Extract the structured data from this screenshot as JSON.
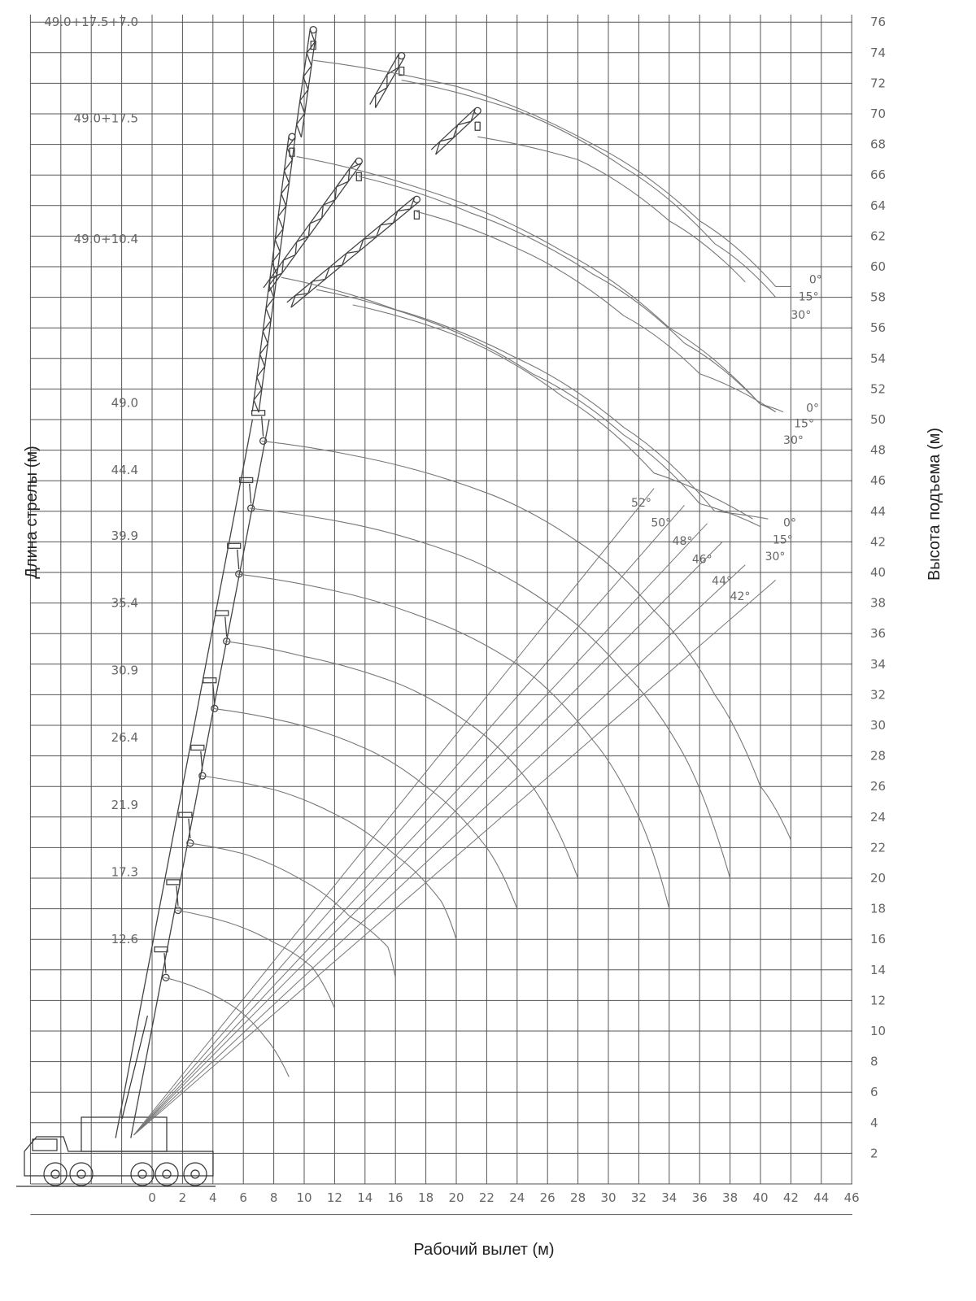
{
  "chart_data": {
    "type": "line",
    "title": "",
    "xlabel": "Рабочий вылет (м)",
    "ylabel_left": "Длина стрелы (м)",
    "ylabel_right": "Высота подъема (м)",
    "xlim": [
      -8,
      46
    ],
    "ylim": [
      -2,
      76
    ],
    "x_ticks": [
      "0",
      "2",
      "4",
      "6",
      "8",
      "10",
      "12",
      "14",
      "16",
      "18",
      "20",
      "22",
      "24",
      "26",
      "28",
      "30",
      "32",
      "34",
      "36",
      "38",
      "40",
      "42",
      "44",
      "46"
    ],
    "y_ticks": [
      "2",
      "4",
      "6",
      "8",
      "10",
      "12",
      "14",
      "16",
      "18",
      "20",
      "22",
      "24",
      "26",
      "28",
      "30",
      "32",
      "34",
      "36",
      "38",
      "40",
      "42",
      "44",
      "46",
      "48",
      "50",
      "52",
      "54",
      "56",
      "58",
      "60",
      "62",
      "64",
      "66",
      "68",
      "70",
      "72",
      "74",
      "76"
    ],
    "boom_length_labels": [
      "12.6",
      "17.3",
      "21.9",
      "26.4",
      "30.9",
      "35.4",
      "39.9",
      "44.4",
      "49.0",
      "49.0+10.4",
      "49.0+17.5",
      "49.0+17.5+7.0"
    ],
    "boom_envelopes": [
      {
        "name": "12.6",
        "points": [
          [
            0.8,
            13.5
          ],
          [
            3,
            12.8
          ],
          [
            5.5,
            11.5
          ],
          [
            7.5,
            9.5
          ],
          [
            9,
            7
          ]
        ]
      },
      {
        "name": "17.3",
        "points": [
          [
            1.6,
            17.9
          ],
          [
            5,
            17.1
          ],
          [
            8,
            15.8
          ],
          [
            10.5,
            14.2
          ],
          [
            12,
            11.5
          ]
        ]
      },
      {
        "name": "21.9",
        "points": [
          [
            2.4,
            22.3
          ],
          [
            6,
            21.6
          ],
          [
            10,
            19.8
          ],
          [
            13,
            17.5
          ],
          [
            15.5,
            15.5
          ],
          [
            16,
            13.5
          ]
        ]
      },
      {
        "name": "26.4",
        "points": [
          [
            3.2,
            26.7
          ],
          [
            8,
            25.8
          ],
          [
            12,
            24.2
          ],
          [
            16,
            21.5
          ],
          [
            19,
            18.5
          ],
          [
            20,
            16
          ]
        ]
      },
      {
        "name": "30.9",
        "points": [
          [
            4,
            31.1
          ],
          [
            9,
            30.2
          ],
          [
            14,
            28.5
          ],
          [
            18,
            26
          ],
          [
            22,
            22
          ],
          [
            24,
            18
          ]
        ]
      },
      {
        "name": "35.4",
        "points": [
          [
            4.8,
            35.5
          ],
          [
            10,
            34.5
          ],
          [
            16,
            32.8
          ],
          [
            21,
            30
          ],
          [
            25,
            26
          ],
          [
            28,
            20
          ]
        ]
      },
      {
        "name": "39.9",
        "points": [
          [
            5.6,
            39.9
          ],
          [
            12,
            38.8
          ],
          [
            18,
            37
          ],
          [
            24,
            34
          ],
          [
            29,
            29
          ],
          [
            32,
            24
          ],
          [
            34,
            18
          ]
        ]
      },
      {
        "name": "44.4",
        "points": [
          [
            6.4,
            44.2
          ],
          [
            13,
            43.2
          ],
          [
            20,
            41.2
          ],
          [
            26,
            38
          ],
          [
            31,
            33.5
          ],
          [
            35,
            28
          ],
          [
            38,
            20
          ]
        ]
      },
      {
        "name": "49.0",
        "points": [
          [
            7.2,
            48.6
          ],
          [
            14,
            47.5
          ],
          [
            22,
            45.2
          ],
          [
            28,
            42
          ],
          [
            33,
            37.5
          ],
          [
            37,
            32
          ],
          [
            40,
            26
          ],
          [
            42,
            22.5
          ]
        ]
      }
    ],
    "jib_envelopes": [
      {
        "name": "49.0+10.4 / 0°",
        "points": [
          [
            8.5,
            59.3
          ],
          [
            16,
            57.2
          ],
          [
            24,
            54
          ],
          [
            31,
            49.5
          ],
          [
            37,
            44
          ],
          [
            40.5,
            43.5
          ]
        ]
      },
      {
        "name": "49.0+10.4 / 15°",
        "points": [
          [
            10.8,
            58.5
          ],
          [
            18,
            56.5
          ],
          [
            25,
            53
          ],
          [
            31,
            49
          ],
          [
            36,
            44.5
          ],
          [
            40,
            43
          ]
        ]
      },
      {
        "name": "49.0+10.4 / 30°",
        "points": [
          [
            13.2,
            57.5
          ],
          [
            20,
            55.5
          ],
          [
            27,
            51.5
          ],
          [
            33,
            46.5
          ],
          [
            39.5,
            43.5
          ]
        ]
      },
      {
        "name": "49.0+17.5 / 0°",
        "points": [
          [
            9.5,
            67.2
          ],
          [
            18,
            65
          ],
          [
            27,
            61
          ],
          [
            34,
            56
          ],
          [
            40,
            51
          ],
          [
            41.5,
            50.5
          ]
        ]
      },
      {
        "name": "49.0+17.5 / 15°",
        "points": [
          [
            13.6,
            65.9
          ],
          [
            21,
            63.5
          ],
          [
            29,
            59.5
          ],
          [
            35,
            55
          ],
          [
            40,
            51
          ],
          [
            41,
            50.5
          ]
        ]
      },
      {
        "name": "49.0+17.5 / 30°",
        "points": [
          [
            17.4,
            63.6
          ],
          [
            24,
            61.2
          ],
          [
            31,
            56.8
          ],
          [
            36,
            53
          ],
          [
            41,
            50.5
          ]
        ]
      },
      {
        "name": "49.0+17.5+7.0 / 0°",
        "points": [
          [
            10.6,
            73.5
          ],
          [
            20,
            71.8
          ],
          [
            29,
            68
          ],
          [
            36,
            63
          ],
          [
            41,
            58.7
          ],
          [
            42,
            58.7
          ]
        ]
      },
      {
        "name": "49.0+17.5+7.0 / 15°",
        "points": [
          [
            16.4,
            72.2
          ],
          [
            24,
            70.2
          ],
          [
            31,
            66.5
          ],
          [
            37,
            61.5
          ],
          [
            41,
            58
          ]
        ]
      },
      {
        "name": "49.0+17.5+7.0 / 30°",
        "points": [
          [
            21.4,
            68.5
          ],
          [
            28,
            67
          ],
          [
            34,
            63
          ],
          [
            39,
            59
          ]
        ]
      }
    ],
    "jib_angle_labels": [
      "0°",
      "15°",
      "30°",
      "0°",
      "15°",
      "30°",
      "0°",
      "15°",
      "30°"
    ],
    "boom_angle_lines": [
      {
        "label": "52°",
        "to": [
          33,
          45.5
        ]
      },
      {
        "label": "50°",
        "to": [
          35,
          44.4
        ]
      },
      {
        "label": "48°",
        "to": [
          36.5,
          43.2
        ]
      },
      {
        "label": "46°",
        "to": [
          37.5,
          42
        ]
      },
      {
        "label": "44°",
        "to": [
          39,
          40.5
        ]
      },
      {
        "label": "42°",
        "to": [
          41,
          39.5
        ]
      }
    ],
    "boom_angle_labels": [
      "52°",
      "50°",
      "48°",
      "46°",
      "44°",
      "42°"
    ],
    "grid": true,
    "legend": "none"
  }
}
